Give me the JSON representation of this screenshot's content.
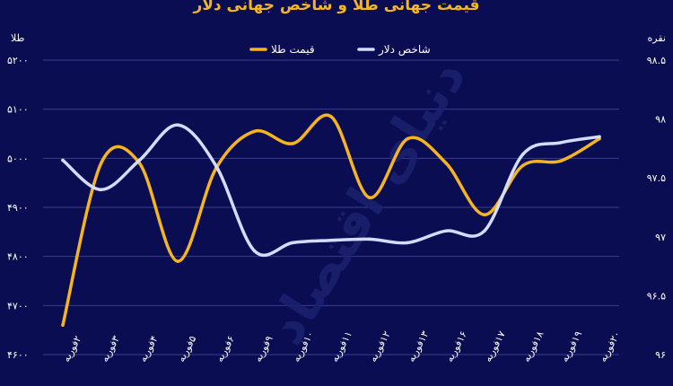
{
  "chart_data": {
    "type": "line",
    "title": "قیمت جهانی طلا و شاخص جهانی دلار",
    "watermark": "دنیای اقتصاد",
    "left_axis": {
      "unit_label": "طلا",
      "ylim": [
        4600,
        5200
      ],
      "tick_labels": [
        "۵۲۰۰",
        "۵۱۰۰",
        "۵۰۰۰",
        "۴۹۰۰",
        "۴۸۰۰",
        "۴۷۰۰",
        "۴۶۰۰"
      ],
      "tick_values": [
        5200,
        5100,
        5000,
        4900,
        4800,
        4700,
        4600
      ]
    },
    "right_axis": {
      "unit_label": "نقره",
      "ylim": [
        96,
        98.5
      ],
      "tick_labels": [
        "۹۸.۵",
        "۹۸",
        "۹۷.۵",
        "۹۷",
        "۹۶.۵",
        "۹۶"
      ],
      "tick_values": [
        98.5,
        98,
        97.5,
        97,
        96.5,
        96
      ]
    },
    "categories": [
      "۲فوریه",
      "۳فوریه",
      "۴فوریه",
      "۵فوریه",
      "۶فوریه",
      "۹فوریه",
      "۱۰فوریه",
      "۱۱فوریه",
      "۱۲فوریه",
      "۱۳فوریه",
      "۱۶فوریه",
      "۱۷فوریه",
      "۱۸فوریه",
      "۱۹فوریه",
      "۲۰فوریه"
    ],
    "series": [
      {
        "name": "قیمت طلا",
        "axis": "left",
        "color": "#f5b51f",
        "values": [
          4660,
          4990,
          4990,
          4790,
          4980,
          5055,
          5030,
          5085,
          4920,
          5040,
          4990,
          4885,
          4985,
          4995,
          5040
        ]
      },
      {
        "name": "شاخص دلار",
        "axis": "right",
        "color": "#d4dcff",
        "values": [
          97.65,
          97.4,
          97.65,
          97.95,
          97.6,
          96.88,
          96.95,
          96.97,
          96.98,
          96.95,
          97.05,
          97.05,
          97.7,
          97.8,
          97.85
        ]
      }
    ],
    "grid": true,
    "legend_position": "top"
  }
}
